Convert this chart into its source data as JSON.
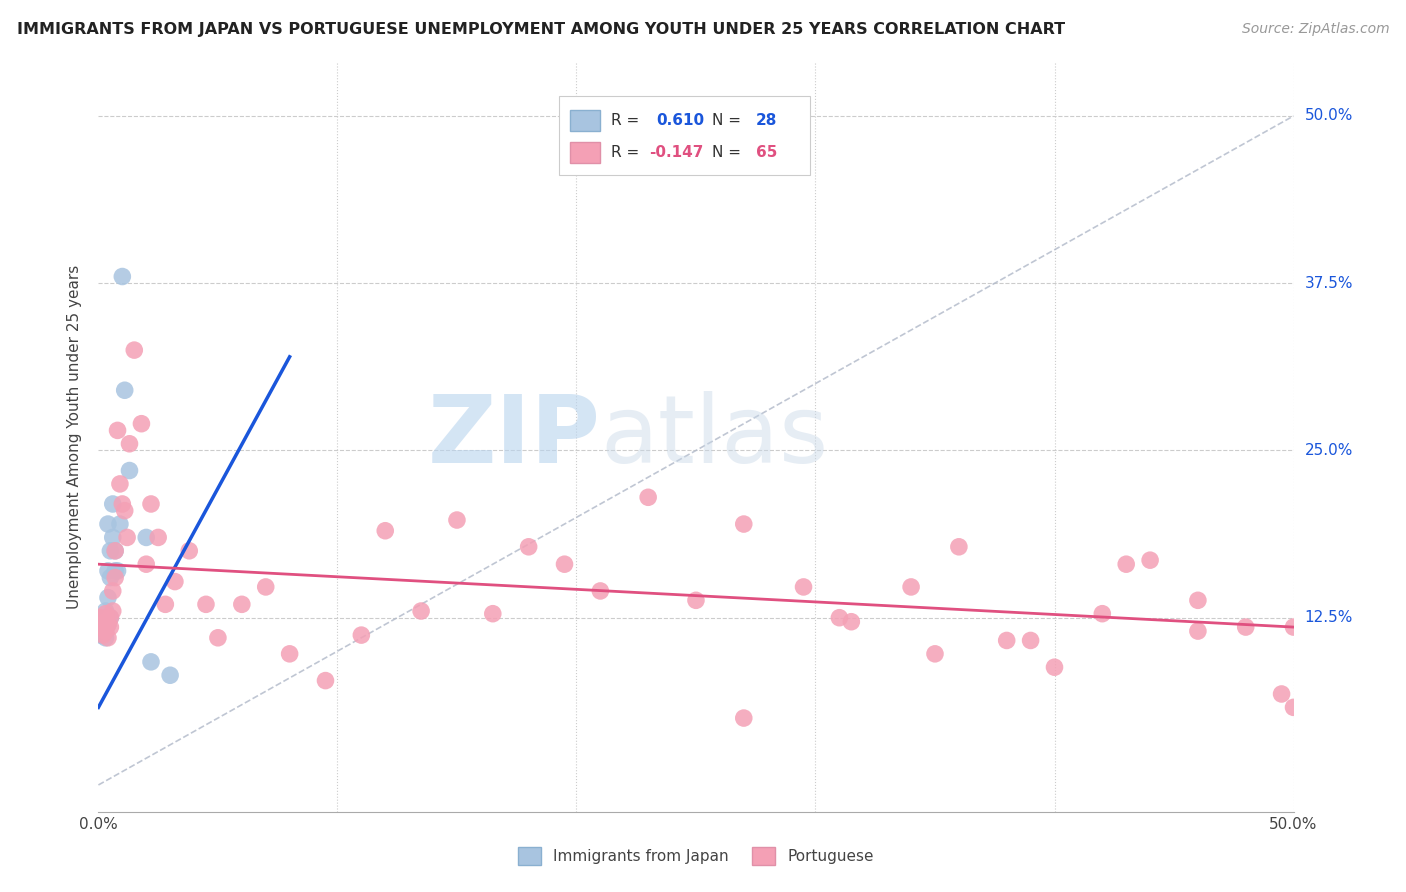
{
  "title": "IMMIGRANTS FROM JAPAN VS PORTUGUESE UNEMPLOYMENT AMONG YOUTH UNDER 25 YEARS CORRELATION CHART",
  "source": "Source: ZipAtlas.com",
  "ylabel": "Unemployment Among Youth under 25 years",
  "xlim": [
    0.0,
    0.5
  ],
  "ylim": [
    -0.02,
    0.54
  ],
  "blue_color": "#a8c4e0",
  "blue_line_color": "#1a56db",
  "pink_color": "#f4a0b5",
  "pink_line_color": "#e05080",
  "diagonal_color": "#b0b8c8",
  "watermark_zip": "ZIP",
  "watermark_atlas": "atlas",
  "blue_R": "0.610",
  "blue_N": "28",
  "pink_R": "-0.147",
  "pink_N": "65",
  "blue_scatter_x": [
    0.001,
    0.001,
    0.002,
    0.002,
    0.002,
    0.003,
    0.003,
    0.003,
    0.003,
    0.004,
    0.004,
    0.004,
    0.004,
    0.005,
    0.005,
    0.005,
    0.006,
    0.006,
    0.007,
    0.007,
    0.008,
    0.009,
    0.01,
    0.011,
    0.013,
    0.02,
    0.022,
    0.03
  ],
  "blue_scatter_y": [
    0.118,
    0.112,
    0.125,
    0.115,
    0.12,
    0.13,
    0.122,
    0.11,
    0.115,
    0.195,
    0.16,
    0.14,
    0.12,
    0.175,
    0.155,
    0.125,
    0.21,
    0.185,
    0.175,
    0.16,
    0.16,
    0.195,
    0.38,
    0.295,
    0.235,
    0.185,
    0.092,
    0.082
  ],
  "pink_scatter_x": [
    0.001,
    0.001,
    0.002,
    0.002,
    0.003,
    0.003,
    0.003,
    0.004,
    0.004,
    0.005,
    0.005,
    0.006,
    0.006,
    0.007,
    0.007,
    0.008,
    0.009,
    0.01,
    0.011,
    0.012,
    0.013,
    0.015,
    0.018,
    0.02,
    0.022,
    0.025,
    0.028,
    0.032,
    0.038,
    0.045,
    0.05,
    0.06,
    0.07,
    0.08,
    0.095,
    0.11,
    0.12,
    0.135,
    0.15,
    0.165,
    0.18,
    0.195,
    0.21,
    0.23,
    0.25,
    0.27,
    0.295,
    0.315,
    0.34,
    0.36,
    0.38,
    0.4,
    0.42,
    0.44,
    0.46,
    0.48,
    0.495,
    0.5,
    0.43,
    0.39,
    0.35,
    0.31,
    0.27,
    0.46,
    0.5
  ],
  "pink_scatter_y": [
    0.125,
    0.118,
    0.12,
    0.112,
    0.128,
    0.115,
    0.122,
    0.12,
    0.11,
    0.125,
    0.118,
    0.145,
    0.13,
    0.175,
    0.155,
    0.265,
    0.225,
    0.21,
    0.205,
    0.185,
    0.255,
    0.325,
    0.27,
    0.165,
    0.21,
    0.185,
    0.135,
    0.152,
    0.175,
    0.135,
    0.11,
    0.135,
    0.148,
    0.098,
    0.078,
    0.112,
    0.19,
    0.13,
    0.198,
    0.128,
    0.178,
    0.165,
    0.145,
    0.215,
    0.138,
    0.195,
    0.148,
    0.122,
    0.148,
    0.178,
    0.108,
    0.088,
    0.128,
    0.168,
    0.138,
    0.118,
    0.068,
    0.118,
    0.165,
    0.108,
    0.098,
    0.125,
    0.05,
    0.115,
    0.058
  ],
  "blue_line_x0": 0.0,
  "blue_line_y0": 0.058,
  "blue_line_x1": 0.08,
  "blue_line_y1": 0.32,
  "pink_line_x0": 0.0,
  "pink_line_y0": 0.165,
  "pink_line_x1": 0.5,
  "pink_line_y1": 0.118
}
